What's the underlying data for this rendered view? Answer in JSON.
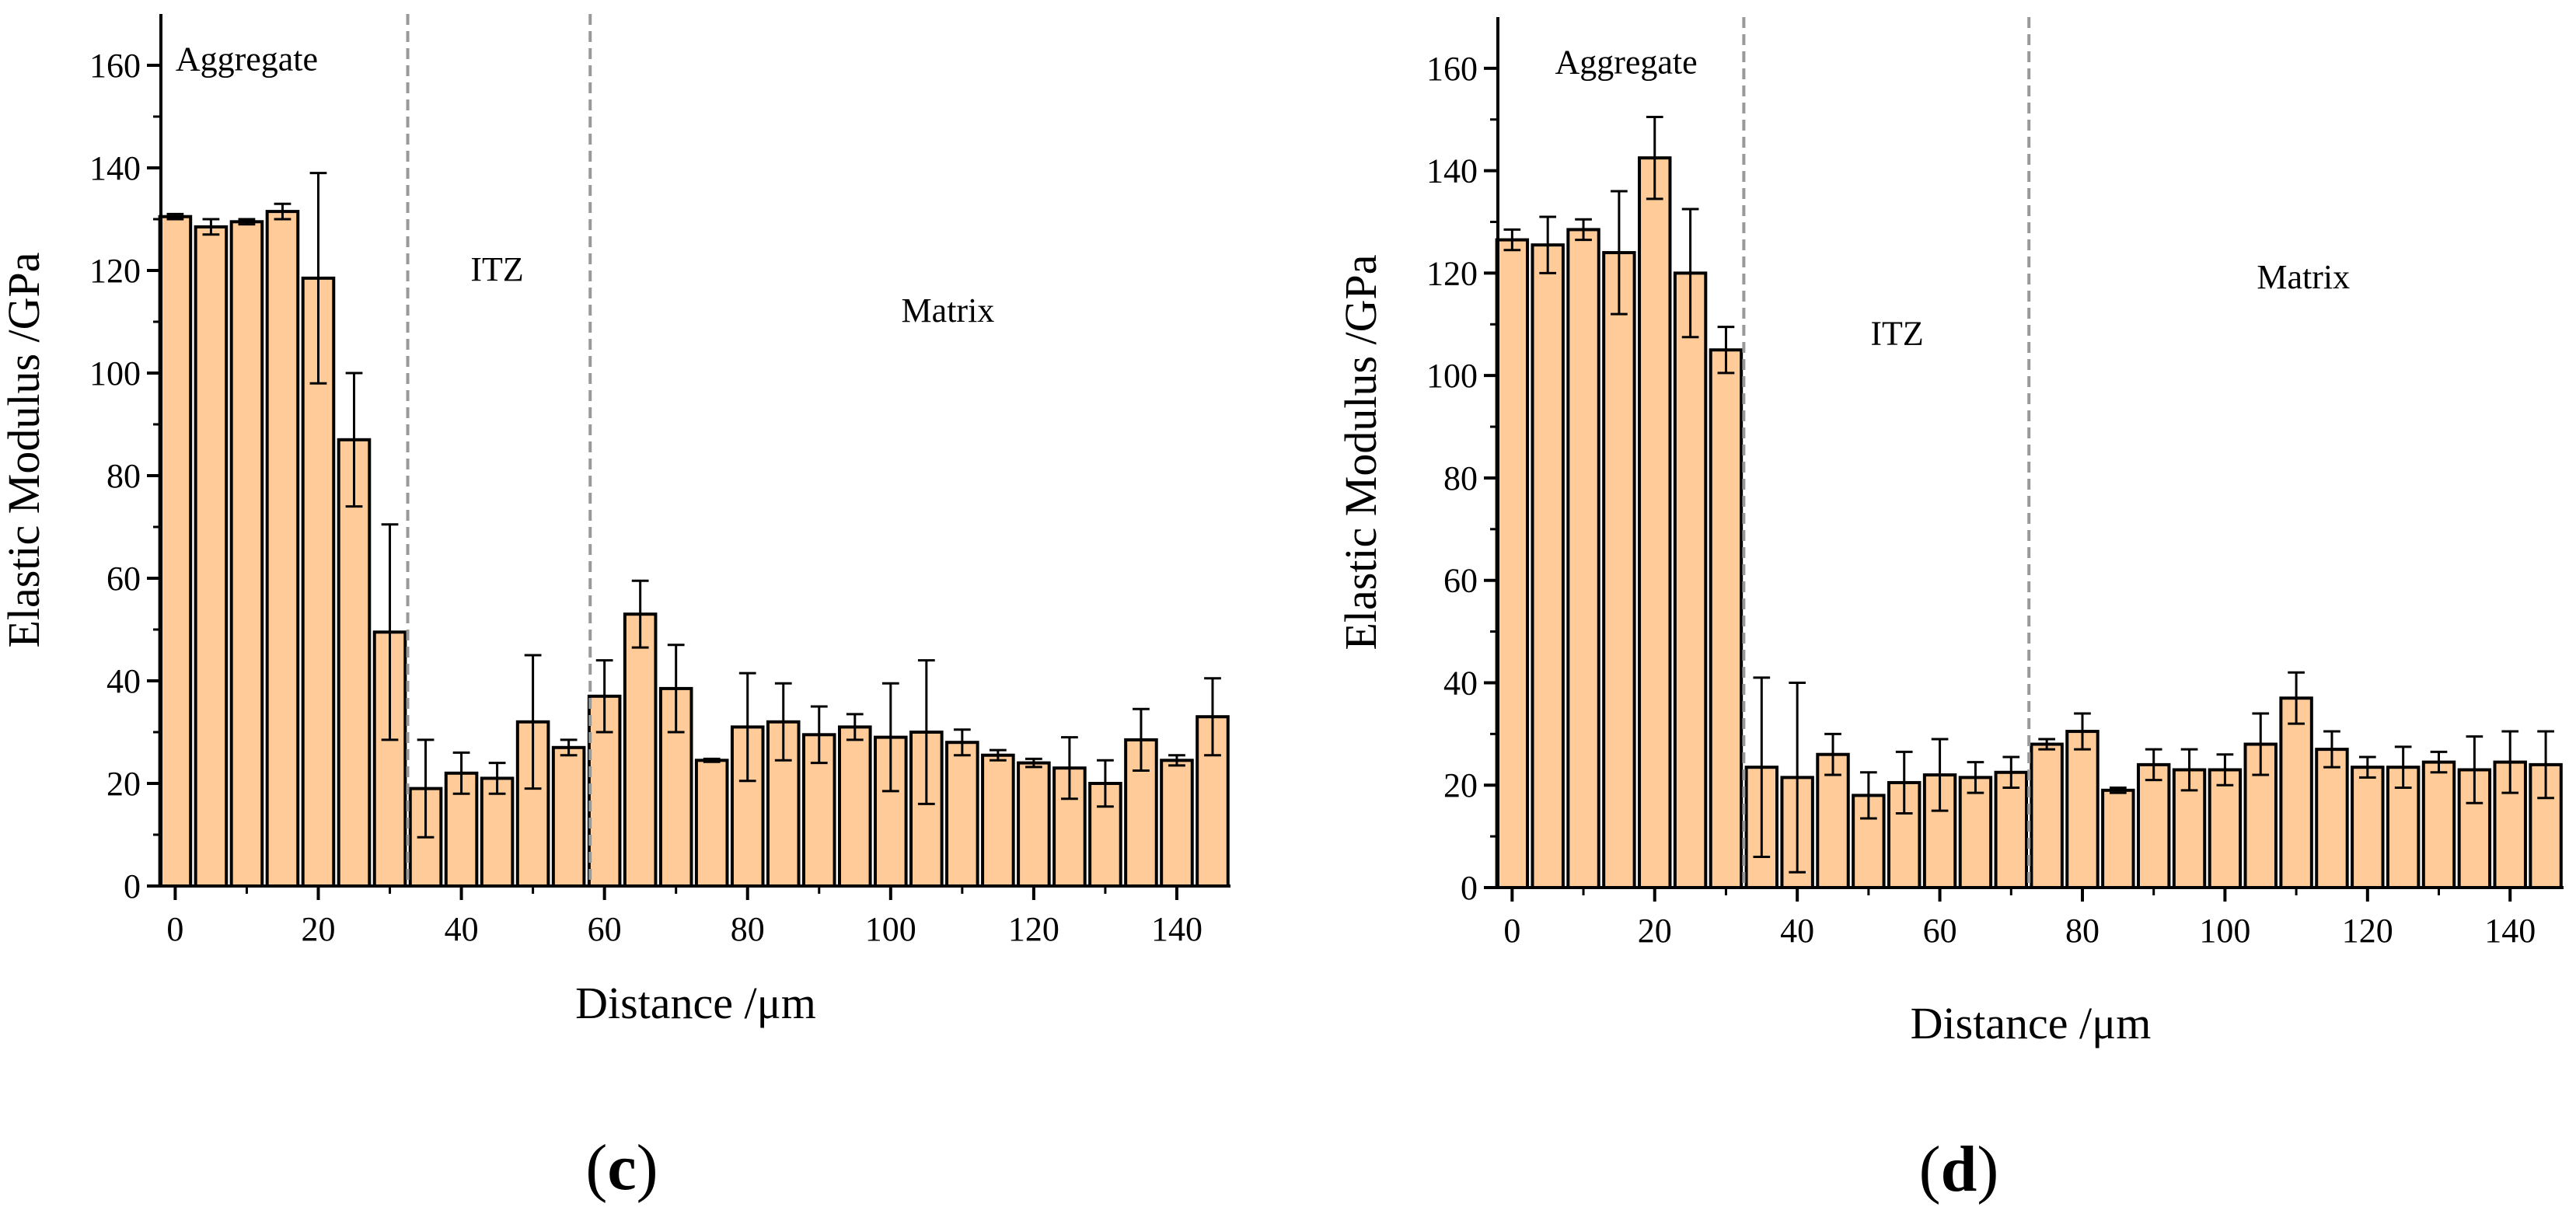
{
  "chart_data": [
    {
      "type": "bar",
      "panel": "c",
      "title": "",
      "xlabel": "Distance /μm",
      "ylabel": "Elastic Modulus /GPa",
      "xlim": [
        -2,
        147.5
      ],
      "ylim": [
        0,
        170
      ],
      "xticks": [
        0,
        20,
        40,
        60,
        80,
        100,
        120,
        140
      ],
      "yticks": [
        0,
        20,
        40,
        60,
        80,
        100,
        120,
        140,
        160
      ],
      "bar_color": "#FFCC99",
      "x": [
        0,
        5,
        10,
        15,
        20,
        25,
        30,
        35,
        40,
        45,
        50,
        55,
        60,
        65,
        70,
        75,
        80,
        85,
        90,
        95,
        100,
        105,
        110,
        115,
        120,
        125,
        130,
        135,
        140,
        145
      ],
      "values": [
        130.5,
        128.5,
        129.5,
        131.5,
        118.5,
        87,
        49.5,
        19,
        22,
        21,
        32,
        27,
        37,
        53,
        38.5,
        24.5,
        31,
        32,
        29.5,
        31,
        29,
        30,
        28,
        25.5,
        24,
        23,
        20,
        28.5,
        24.5,
        33
      ],
      "errors": [
        0.5,
        1.5,
        0.5,
        1.5,
        20.5,
        13,
        21,
        9.5,
        4,
        3,
        13,
        1.5,
        7,
        6.5,
        8.5,
        0.3,
        10.5,
        7.5,
        5.5,
        2.5,
        10.5,
        14,
        2.5,
        1,
        0.8,
        6,
        4.5,
        6,
        1,
        7.5
      ],
      "boundaries": [
        32.5,
        58
      ],
      "regions": [
        {
          "label": "Aggregate",
          "x": 10,
          "y": 159
        },
        {
          "label": "ITZ",
          "x": 45,
          "y": 118
        },
        {
          "label": "Matrix",
          "x": 108,
          "y": 110
        }
      ],
      "panel_label": {
        "open": "(",
        "letter": "c",
        "close": ")"
      }
    },
    {
      "type": "bar",
      "panel": "d",
      "title": "",
      "xlabel": "Distance /μm",
      "ylabel": "Elastic Modulus /GPa",
      "xlim": [
        -2,
        147.5
      ],
      "ylim": [
        0,
        170
      ],
      "xticks": [
        0,
        20,
        40,
        60,
        80,
        100,
        120,
        140
      ],
      "yticks": [
        0,
        20,
        40,
        60,
        80,
        100,
        120,
        140,
        160
      ],
      "bar_color": "#FFCC99",
      "x": [
        0,
        5,
        10,
        15,
        20,
        25,
        30,
        35,
        40,
        45,
        50,
        55,
        60,
        65,
        70,
        75,
        80,
        85,
        90,
        95,
        100,
        105,
        110,
        115,
        120,
        125,
        130,
        135,
        140,
        145
      ],
      "values": [
        126.5,
        125.5,
        128.5,
        124,
        142.5,
        120,
        105,
        23.5,
        21.5,
        26,
        18,
        20.5,
        22,
        21.5,
        22.5,
        28,
        30.5,
        19,
        24,
        23,
        23,
        28,
        37,
        27,
        23.5,
        23.5,
        24.5,
        23,
        24.5,
        24
      ],
      "errors": [
        2,
        5.5,
        2,
        12,
        8,
        12.5,
        4.5,
        17.5,
        18.5,
        4,
        4.5,
        6,
        7,
        3,
        3,
        1,
        3.5,
        0.5,
        3,
        4,
        3,
        6,
        5,
        3.5,
        2,
        4,
        2,
        6.5,
        6,
        6.5
      ],
      "boundaries": [
        32.5,
        72.5
      ],
      "regions": [
        {
          "label": "Aggregate",
          "x": 16,
          "y": 159
        },
        {
          "label": "ITZ",
          "x": 54,
          "y": 106
        },
        {
          "label": "Matrix",
          "x": 111,
          "y": 117
        }
      ],
      "panel_label": {
        "open": "(",
        "letter": "d",
        "close": ")"
      }
    }
  ]
}
